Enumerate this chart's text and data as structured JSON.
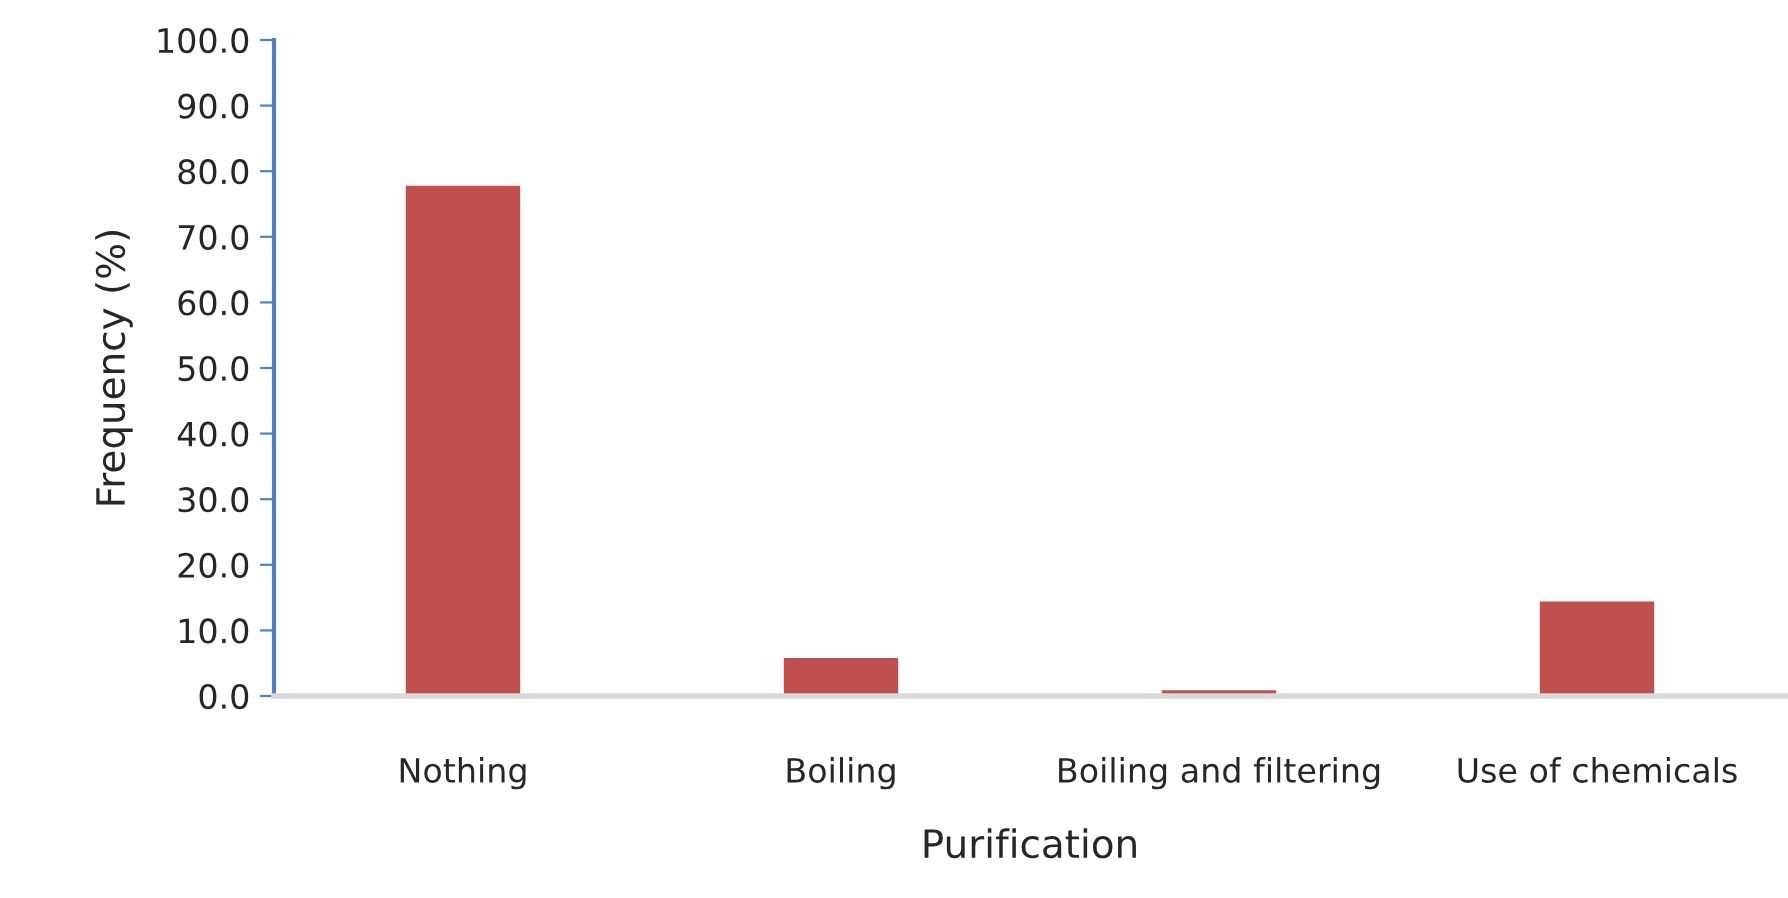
{
  "chart_data": {
    "type": "bar",
    "xlabel": "Purification",
    "ylabel": "Frequency (%)",
    "categories": [
      "Nothing",
      "Boiling",
      "Boiling and filtering",
      "Use of chemicals"
    ],
    "values": [
      78.0,
      6.0,
      1.1,
      14.6
    ],
    "color": "#c0504d",
    "ylim": [
      0,
      100
    ],
    "yticks": [
      {
        "value": 0,
        "label": "0.0"
      },
      {
        "value": 10,
        "label": "10.0"
      },
      {
        "value": 20,
        "label": "20.0"
      },
      {
        "value": 30,
        "label": "30.0"
      },
      {
        "value": 40,
        "label": "40.0"
      },
      {
        "value": 50,
        "label": "50.0"
      },
      {
        "value": 60,
        "label": "60.0"
      },
      {
        "value": 70,
        "label": "70.0"
      },
      {
        "value": 80,
        "label": "80.0"
      },
      {
        "value": 90,
        "label": "90.0"
      },
      {
        "value": 100,
        "label": "100.0"
      }
    ],
    "grid": false,
    "legend": false
  }
}
